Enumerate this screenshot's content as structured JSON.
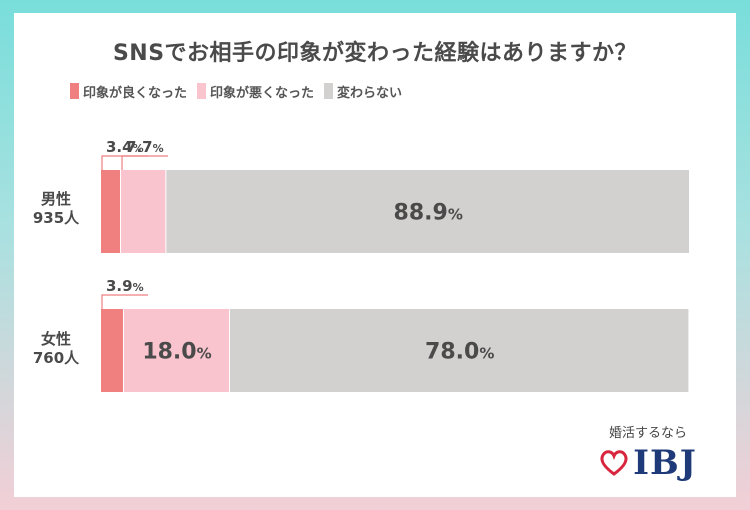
{
  "chart_data": {
    "type": "bar",
    "orientation": "horizontal-stacked-100",
    "title": "SNSでお相手の印象が変わった経験はありますか？",
    "categories": [
      {
        "line1": "男性",
        "line2": "935人"
      },
      {
        "line1": "女性",
        "line2": "760人"
      }
    ],
    "series": [
      {
        "name": "印象が良くなった",
        "color": "#f07f80",
        "values": [
          3.4,
          3.9
        ]
      },
      {
        "name": "印象が悪くなった",
        "color": "#f9c4ce",
        "values": [
          7.7,
          18.0
        ]
      },
      {
        "name": "変わらない",
        "color": "#d3d0d0",
        "values": [
          88.9,
          78.0
        ]
      }
    ],
    "value_unit": "%",
    "xlim": [
      0,
      100
    ]
  },
  "brand": {
    "tagline": "婚活するなら",
    "name": "IBJ",
    "accent": "#d7263d",
    "name_color": "#1f3a78"
  }
}
